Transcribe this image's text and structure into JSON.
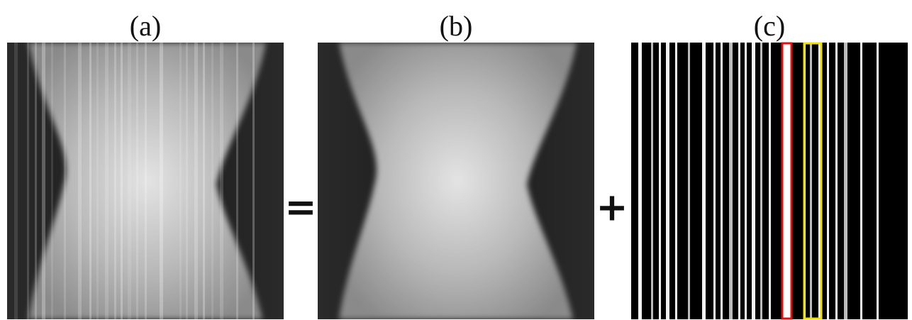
{
  "panels": [
    {
      "label": "(a)"
    },
    {
      "label": "(b)"
    },
    {
      "label": "(c)"
    }
  ],
  "operators": {
    "equals": "=",
    "plus": "+"
  }
}
